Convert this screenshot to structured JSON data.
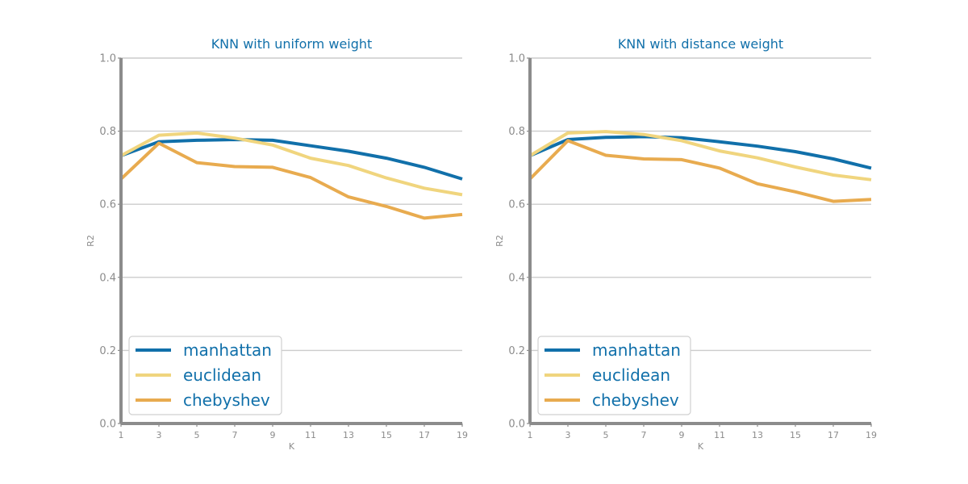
{
  "chart_data": [
    {
      "type": "line",
      "title": "KNN with uniform weight",
      "xlabel": "K",
      "ylabel": "R2",
      "x": [
        1,
        3,
        5,
        7,
        9,
        11,
        13,
        15,
        17,
        19
      ],
      "xticks": [
        "1",
        "3",
        "5",
        "7",
        "9",
        "11",
        "13",
        "15",
        "17",
        "19"
      ],
      "ylim": [
        0,
        1
      ],
      "yticks": [
        "0.0",
        "0.2",
        "0.4",
        "0.6",
        "0.8",
        "1.0"
      ],
      "grid": "horizontal",
      "legend": "bottom-left",
      "series": [
        {
          "name": "manhattan",
          "color": "#1170aa",
          "values": [
            0.733,
            0.771,
            0.775,
            0.777,
            0.775,
            0.76,
            0.745,
            0.726,
            0.701,
            0.669
          ]
        },
        {
          "name": "euclidean",
          "color": "#f0d57e",
          "values": [
            0.733,
            0.789,
            0.795,
            0.781,
            0.762,
            0.726,
            0.706,
            0.672,
            0.644,
            0.626
          ]
        },
        {
          "name": "chebyshev",
          "color": "#e8ab4f",
          "values": [
            0.669,
            0.767,
            0.714,
            0.703,
            0.701,
            0.673,
            0.62,
            0.594,
            0.562,
            0.572
          ]
        }
      ]
    },
    {
      "type": "line",
      "title": "KNN with distance weight",
      "xlabel": "K",
      "ylabel": "R2",
      "x": [
        1,
        3,
        5,
        7,
        9,
        11,
        13,
        15,
        17,
        19
      ],
      "xticks": [
        "1",
        "3",
        "5",
        "7",
        "9",
        "11",
        "13",
        "15",
        "17",
        "19"
      ],
      "ylim": [
        0,
        1
      ],
      "yticks": [
        "0.0",
        "0.2",
        "0.4",
        "0.6",
        "0.8",
        "1.0"
      ],
      "grid": "horizontal",
      "legend": "bottom-left",
      "series": [
        {
          "name": "manhattan",
          "color": "#1170aa",
          "values": [
            0.733,
            0.777,
            0.783,
            0.785,
            0.782,
            0.771,
            0.759,
            0.744,
            0.724,
            0.699
          ]
        },
        {
          "name": "euclidean",
          "color": "#f0d57e",
          "values": [
            0.733,
            0.795,
            0.799,
            0.791,
            0.774,
            0.746,
            0.727,
            0.702,
            0.68,
            0.667
          ]
        },
        {
          "name": "chebyshev",
          "color": "#e8ab4f",
          "values": [
            0.669,
            0.774,
            0.734,
            0.724,
            0.722,
            0.699,
            0.656,
            0.634,
            0.608,
            0.613
          ]
        }
      ]
    }
  ]
}
